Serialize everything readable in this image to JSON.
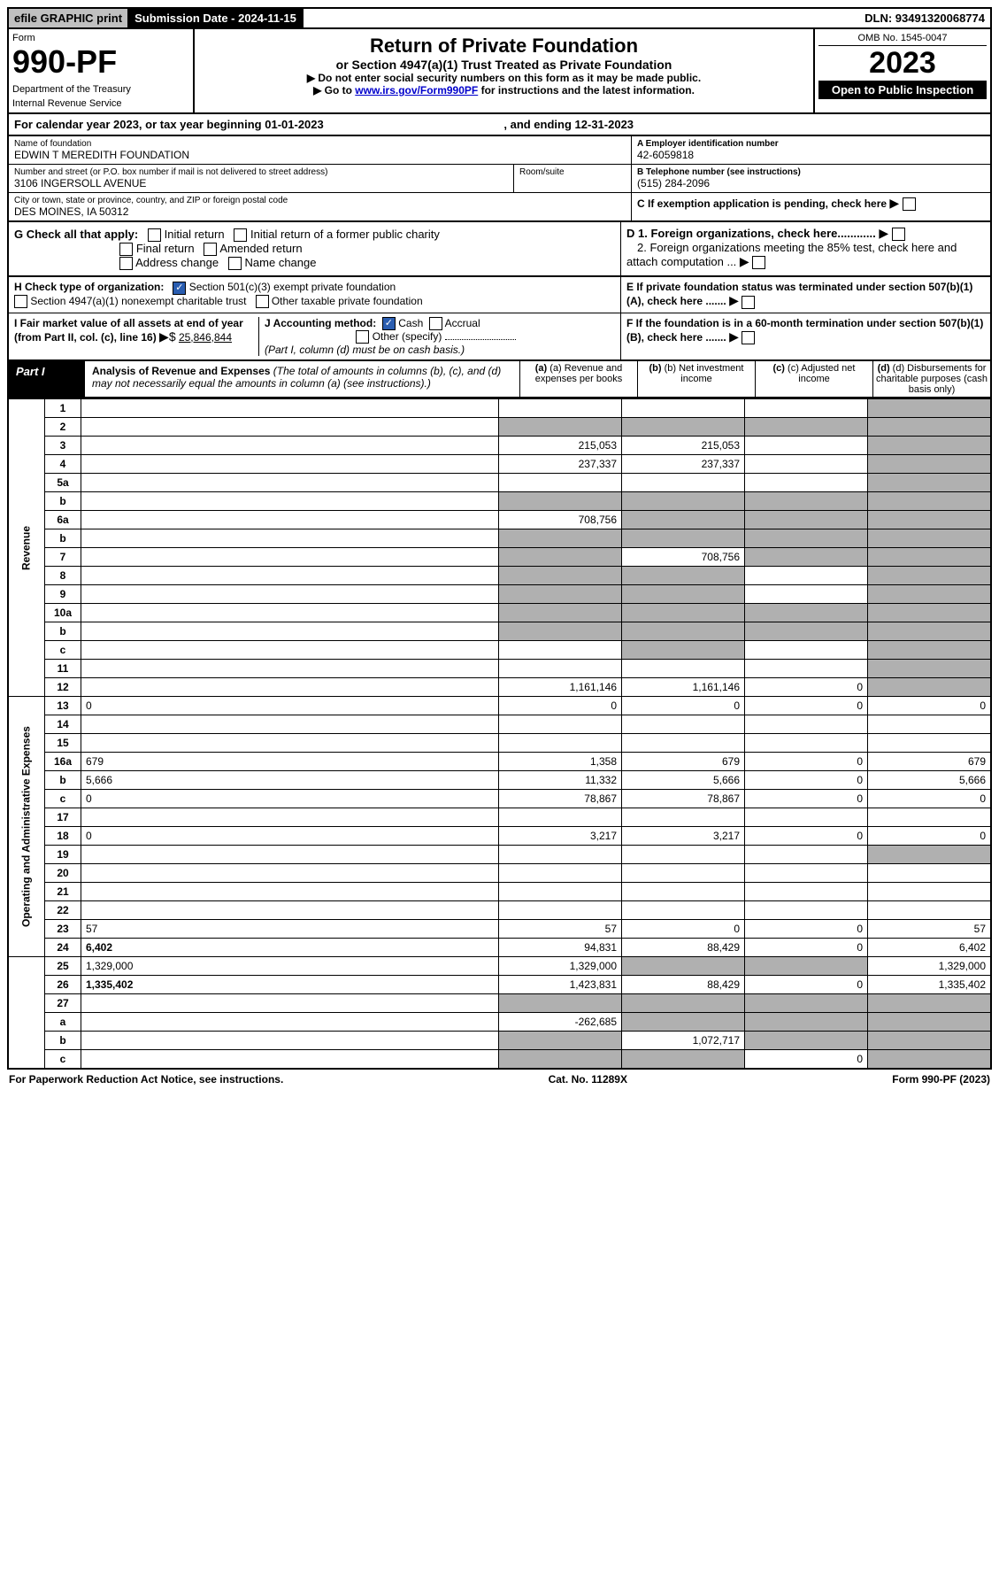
{
  "top": {
    "efile": "efile GRAPHIC print",
    "submission": "Submission Date - 2024-11-15",
    "dln": "DLN: 93491320068774"
  },
  "header": {
    "form_label": "Form",
    "form_number": "990-PF",
    "dept1": "Department of the Treasury",
    "dept2": "Internal Revenue Service",
    "title": "Return of Private Foundation",
    "subtitle": "or Section 4947(a)(1) Trust Treated as Private Foundation",
    "instr1": "▶ Do not enter social security numbers on this form as it may be made public.",
    "instr2": "▶ Go to ",
    "instr2_link": "www.irs.gov/Form990PF",
    "instr2_after": " for instructions and the latest information.",
    "omb": "OMB No. 1545-0047",
    "year": "2023",
    "open": "Open to Public Inspection"
  },
  "cy": {
    "prefix": "For calendar year 2023, or tax year beginning ",
    "begin": "01-01-2023",
    "mid": " , and ending ",
    "end": "12-31-2023"
  },
  "name_block": {
    "label": "Name of foundation",
    "value": "EDWIN T MEREDITH FOUNDATION",
    "addr_label": "Number and street (or P.O. box number if mail is not delivered to street address)",
    "addr": "3106 INGERSOLL AVENUE",
    "room_label": "Room/suite",
    "city_label": "City or town, state or province, country, and ZIP or foreign postal code",
    "city": "DES MOINES, IA  50312"
  },
  "right_block": {
    "a_label": "A Employer identification number",
    "a_val": "42-6059818",
    "b_label": "B Telephone number (see instructions)",
    "b_val": "(515) 284-2096",
    "c_label": "C If exemption application is pending, check here",
    "d1": "D 1. Foreign organizations, check here............",
    "d2": "2. Foreign organizations meeting the 85% test, check here and attach computation ...",
    "e": "E  If private foundation status was terminated under section 507(b)(1)(A), check here .......",
    "f": "F  If the foundation is in a 60-month termination under section 507(b)(1)(B), check here .......",
    "g_label": "G Check all that apply:",
    "g_opts": [
      "Initial return",
      "Initial return of a former public charity",
      "Final return",
      "Amended return",
      "Address change",
      "Name change"
    ],
    "h_label": "H Check type of organization:",
    "h_opts": [
      "Section 501(c)(3) exempt private foundation",
      "Section 4947(a)(1) nonexempt charitable trust",
      "Other taxable private foundation"
    ],
    "i_label": "I Fair market value of all assets at end of year (from Part II, col. (c), line 16)",
    "i_val": "25,846,844",
    "j_label": "J Accounting method:",
    "j_cash": "Cash",
    "j_accrual": "Accrual",
    "j_other": "Other (specify)",
    "j_note": "(Part I, column (d) must be on cash basis.)"
  },
  "part1": {
    "label": "Part I",
    "title1": "Analysis of Revenue and Expenses",
    "title2": " (The total of amounts in columns (b), (c), and (d) may not necessarily equal the amounts in column (a) (see instructions).)",
    "col_a": "(a) Revenue and expenses per books",
    "col_b": "(b) Net investment income",
    "col_c": "(c) Adjusted net income",
    "col_d": "(d) Disbursements for charitable purposes (cash basis only)"
  },
  "sections": {
    "revenue": "Revenue",
    "expenses": "Operating and Administrative Expenses"
  },
  "rows": [
    {
      "n": "1",
      "d": "",
      "a": "",
      "b": "",
      "c": "",
      "sa": false,
      "sb": false,
      "sc": false,
      "sd": true
    },
    {
      "n": "2",
      "d": "",
      "a": "",
      "b": "",
      "c": "",
      "sa": true,
      "sb": true,
      "sc": true,
      "sd": true
    },
    {
      "n": "3",
      "d": "",
      "a": "215,053",
      "b": "215,053",
      "c": "",
      "sa": false,
      "sb": false,
      "sc": false,
      "sd": true
    },
    {
      "n": "4",
      "d": "",
      "a": "237,337",
      "b": "237,337",
      "c": "",
      "sa": false,
      "sb": false,
      "sc": false,
      "sd": true
    },
    {
      "n": "5a",
      "d": "",
      "a": "",
      "b": "",
      "c": "",
      "sa": false,
      "sb": false,
      "sc": false,
      "sd": true
    },
    {
      "n": "b",
      "d": "",
      "a": "",
      "b": "",
      "c": "",
      "sa": true,
      "sb": true,
      "sc": true,
      "sd": true
    },
    {
      "n": "6a",
      "d": "",
      "a": "708,756",
      "b": "",
      "c": "",
      "sa": false,
      "sb": true,
      "sc": true,
      "sd": true
    },
    {
      "n": "b",
      "d": "",
      "a": "",
      "b": "",
      "c": "",
      "sa": true,
      "sb": true,
      "sc": true,
      "sd": true
    },
    {
      "n": "7",
      "d": "",
      "a": "",
      "b": "708,756",
      "c": "",
      "sa": true,
      "sb": false,
      "sc": true,
      "sd": true
    },
    {
      "n": "8",
      "d": "",
      "a": "",
      "b": "",
      "c": "",
      "sa": true,
      "sb": true,
      "sc": false,
      "sd": true
    },
    {
      "n": "9",
      "d": "",
      "a": "",
      "b": "",
      "c": "",
      "sa": true,
      "sb": true,
      "sc": false,
      "sd": true
    },
    {
      "n": "10a",
      "d": "",
      "a": "",
      "b": "",
      "c": "",
      "sa": true,
      "sb": true,
      "sc": true,
      "sd": true
    },
    {
      "n": "b",
      "d": "",
      "a": "",
      "b": "",
      "c": "",
      "sa": true,
      "sb": true,
      "sc": true,
      "sd": true
    },
    {
      "n": "c",
      "d": "",
      "a": "",
      "b": "",
      "c": "",
      "sa": false,
      "sb": true,
      "sc": false,
      "sd": true
    },
    {
      "n": "11",
      "d": "",
      "a": "",
      "b": "",
      "c": "",
      "sa": false,
      "sb": false,
      "sc": false,
      "sd": true
    },
    {
      "n": "12",
      "d": "",
      "a": "1,161,146",
      "b": "1,161,146",
      "c": "0",
      "bold": true,
      "sa": false,
      "sb": false,
      "sc": false,
      "sd": true
    },
    {
      "n": "13",
      "d": "0",
      "a": "0",
      "b": "0",
      "c": "0",
      "sa": false,
      "sb": false,
      "sc": false,
      "sd": false
    },
    {
      "n": "14",
      "d": "",
      "a": "",
      "b": "",
      "c": "",
      "sa": false,
      "sb": false,
      "sc": false,
      "sd": false
    },
    {
      "n": "15",
      "d": "",
      "a": "",
      "b": "",
      "c": "",
      "sa": false,
      "sb": false,
      "sc": false,
      "sd": false
    },
    {
      "n": "16a",
      "d": "679",
      "a": "1,358",
      "b": "679",
      "c": "0",
      "sa": false,
      "sb": false,
      "sc": false,
      "sd": false
    },
    {
      "n": "b",
      "d": "5,666",
      "a": "11,332",
      "b": "5,666",
      "c": "0",
      "sa": false,
      "sb": false,
      "sc": false,
      "sd": false
    },
    {
      "n": "c",
      "d": "0",
      "a": "78,867",
      "b": "78,867",
      "c": "0",
      "sa": false,
      "sb": false,
      "sc": false,
      "sd": false
    },
    {
      "n": "17",
      "d": "",
      "a": "",
      "b": "",
      "c": "",
      "sa": false,
      "sb": false,
      "sc": false,
      "sd": false
    },
    {
      "n": "18",
      "d": "0",
      "a": "3,217",
      "b": "3,217",
      "c": "0",
      "sa": false,
      "sb": false,
      "sc": false,
      "sd": false
    },
    {
      "n": "19",
      "d": "",
      "a": "",
      "b": "",
      "c": "",
      "sa": false,
      "sb": false,
      "sc": false,
      "sd": true
    },
    {
      "n": "20",
      "d": "",
      "a": "",
      "b": "",
      "c": "",
      "sa": false,
      "sb": false,
      "sc": false,
      "sd": false
    },
    {
      "n": "21",
      "d": "",
      "a": "",
      "b": "",
      "c": "",
      "sa": false,
      "sb": false,
      "sc": false,
      "sd": false
    },
    {
      "n": "22",
      "d": "",
      "a": "",
      "b": "",
      "c": "",
      "sa": false,
      "sb": false,
      "sc": false,
      "sd": false
    },
    {
      "n": "23",
      "d": "57",
      "a": "57",
      "b": "0",
      "c": "0",
      "sa": false,
      "sb": false,
      "sc": false,
      "sd": false
    },
    {
      "n": "24",
      "d": "6,402",
      "a": "94,831",
      "b": "88,429",
      "c": "0",
      "bold": true,
      "sa": false,
      "sb": false,
      "sc": false,
      "sd": false
    },
    {
      "n": "25",
      "d": "1,329,000",
      "a": "1,329,000",
      "b": "",
      "c": "",
      "sa": false,
      "sb": true,
      "sc": true,
      "sd": false
    },
    {
      "n": "26",
      "d": "1,335,402",
      "a": "1,423,831",
      "b": "88,429",
      "c": "0",
      "bold": true,
      "sa": false,
      "sb": false,
      "sc": false,
      "sd": false
    },
    {
      "n": "27",
      "d": "",
      "a": "",
      "b": "",
      "c": "",
      "sa": true,
      "sb": true,
      "sc": true,
      "sd": true
    },
    {
      "n": "a",
      "d": "",
      "a": "-262,685",
      "b": "",
      "c": "",
      "bold": true,
      "sa": false,
      "sb": true,
      "sc": true,
      "sd": true
    },
    {
      "n": "b",
      "d": "",
      "a": "",
      "b": "1,072,717",
      "c": "",
      "bold": true,
      "sa": true,
      "sb": false,
      "sc": true,
      "sd": true
    },
    {
      "n": "c",
      "d": "",
      "a": "",
      "b": "",
      "c": "0",
      "bold": true,
      "sa": true,
      "sb": true,
      "sc": false,
      "sd": true
    }
  ],
  "footer": {
    "left": "For Paperwork Reduction Act Notice, see instructions.",
    "mid": "Cat. No. 11289X",
    "right": "Form 990-PF (2023)"
  }
}
